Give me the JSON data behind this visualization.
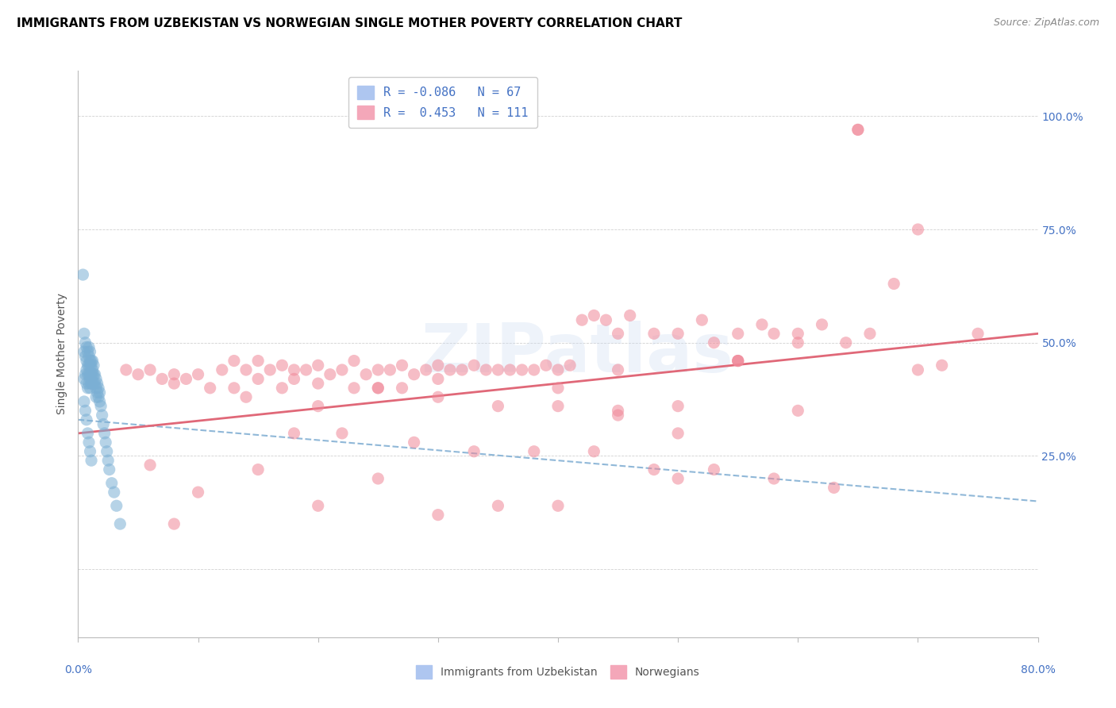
{
  "title": "IMMIGRANTS FROM UZBEKISTAN VS NORWEGIAN SINGLE MOTHER POVERTY CORRELATION CHART",
  "source": "Source: ZipAtlas.com",
  "ylabel": "Single Mother Poverty",
  "yticks": [
    0.0,
    0.25,
    0.5,
    0.75,
    1.0
  ],
  "ytick_labels": [
    "",
    "25.0%",
    "50.0%",
    "75.0%",
    "100.0%"
  ],
  "legend_label1": "Immigrants from Uzbekistan",
  "legend_label2": "Norwegians",
  "blue_color": "#7bafd4",
  "pink_color": "#f08898",
  "blue_line_color": "#90b8d8",
  "pink_line_color": "#e06878",
  "xmin": 0.0,
  "xmax": 0.8,
  "ymin": -0.15,
  "ymax": 1.1,
  "blue_scatter_x": [
    0.004,
    0.005,
    0.005,
    0.005,
    0.006,
    0.006,
    0.006,
    0.007,
    0.007,
    0.007,
    0.007,
    0.008,
    0.008,
    0.008,
    0.008,
    0.009,
    0.009,
    0.009,
    0.009,
    0.009,
    0.01,
    0.01,
    0.01,
    0.01,
    0.01,
    0.01,
    0.011,
    0.011,
    0.011,
    0.011,
    0.012,
    0.012,
    0.012,
    0.012,
    0.013,
    0.013,
    0.013,
    0.014,
    0.014,
    0.015,
    0.015,
    0.015,
    0.016,
    0.016,
    0.017,
    0.017,
    0.018,
    0.018,
    0.019,
    0.02,
    0.021,
    0.022,
    0.023,
    0.024,
    0.025,
    0.026,
    0.028,
    0.03,
    0.032,
    0.035,
    0.005,
    0.006,
    0.007,
    0.008,
    0.009,
    0.01,
    0.011
  ],
  "blue_scatter_y": [
    0.65,
    0.52,
    0.48,
    0.42,
    0.5,
    0.47,
    0.43,
    0.49,
    0.46,
    0.44,
    0.41,
    0.48,
    0.45,
    0.43,
    0.4,
    0.49,
    0.47,
    0.45,
    0.43,
    0.41,
    0.48,
    0.46,
    0.45,
    0.43,
    0.42,
    0.4,
    0.46,
    0.45,
    0.43,
    0.41,
    0.46,
    0.44,
    0.43,
    0.41,
    0.45,
    0.43,
    0.41,
    0.43,
    0.41,
    0.42,
    0.4,
    0.38,
    0.41,
    0.39,
    0.4,
    0.38,
    0.39,
    0.37,
    0.36,
    0.34,
    0.32,
    0.3,
    0.28,
    0.26,
    0.24,
    0.22,
    0.19,
    0.17,
    0.14,
    0.1,
    0.37,
    0.35,
    0.33,
    0.3,
    0.28,
    0.26,
    0.24
  ],
  "pink_scatter_x": [
    0.04,
    0.05,
    0.06,
    0.07,
    0.08,
    0.08,
    0.09,
    0.1,
    0.11,
    0.12,
    0.13,
    0.13,
    0.14,
    0.15,
    0.15,
    0.16,
    0.17,
    0.17,
    0.18,
    0.18,
    0.19,
    0.2,
    0.2,
    0.21,
    0.22,
    0.23,
    0.23,
    0.24,
    0.25,
    0.25,
    0.26,
    0.27,
    0.27,
    0.28,
    0.29,
    0.3,
    0.3,
    0.31,
    0.32,
    0.33,
    0.34,
    0.35,
    0.36,
    0.37,
    0.38,
    0.39,
    0.4,
    0.41,
    0.42,
    0.43,
    0.44,
    0.45,
    0.46,
    0.48,
    0.5,
    0.52,
    0.53,
    0.55,
    0.57,
    0.58,
    0.6,
    0.62,
    0.64,
    0.66,
    0.68,
    0.7,
    0.72,
    0.14,
    0.2,
    0.25,
    0.3,
    0.35,
    0.4,
    0.45,
    0.5,
    0.55,
    0.6,
    0.18,
    0.22,
    0.28,
    0.33,
    0.38,
    0.43,
    0.48,
    0.53,
    0.58,
    0.63,
    0.1,
    0.08,
    0.06,
    0.15,
    0.2,
    0.25,
    0.3,
    0.35,
    0.4,
    0.45,
    0.5,
    0.55,
    0.6,
    0.65,
    0.7,
    0.75,
    0.65,
    0.55,
    0.5,
    0.45,
    0.4
  ],
  "pink_scatter_y": [
    0.44,
    0.43,
    0.44,
    0.42,
    0.43,
    0.41,
    0.42,
    0.43,
    0.4,
    0.44,
    0.46,
    0.4,
    0.44,
    0.46,
    0.42,
    0.44,
    0.45,
    0.4,
    0.44,
    0.42,
    0.44,
    0.45,
    0.41,
    0.43,
    0.44,
    0.46,
    0.4,
    0.43,
    0.44,
    0.4,
    0.44,
    0.45,
    0.4,
    0.43,
    0.44,
    0.45,
    0.42,
    0.44,
    0.44,
    0.45,
    0.44,
    0.44,
    0.44,
    0.44,
    0.44,
    0.45,
    0.44,
    0.45,
    0.55,
    0.56,
    0.55,
    0.52,
    0.56,
    0.52,
    0.52,
    0.55,
    0.5,
    0.52,
    0.54,
    0.52,
    0.52,
    0.54,
    0.5,
    0.52,
    0.63,
    0.44,
    0.45,
    0.38,
    0.36,
    0.4,
    0.38,
    0.36,
    0.4,
    0.44,
    0.36,
    0.46,
    0.35,
    0.3,
    0.3,
    0.28,
    0.26,
    0.26,
    0.26,
    0.22,
    0.22,
    0.2,
    0.18,
    0.17,
    0.1,
    0.23,
    0.22,
    0.14,
    0.2,
    0.12,
    0.14,
    0.14,
    0.34,
    0.2,
    0.46,
    0.5,
    0.97,
    0.75,
    0.52,
    0.97,
    0.46,
    0.3,
    0.35,
    0.36
  ]
}
